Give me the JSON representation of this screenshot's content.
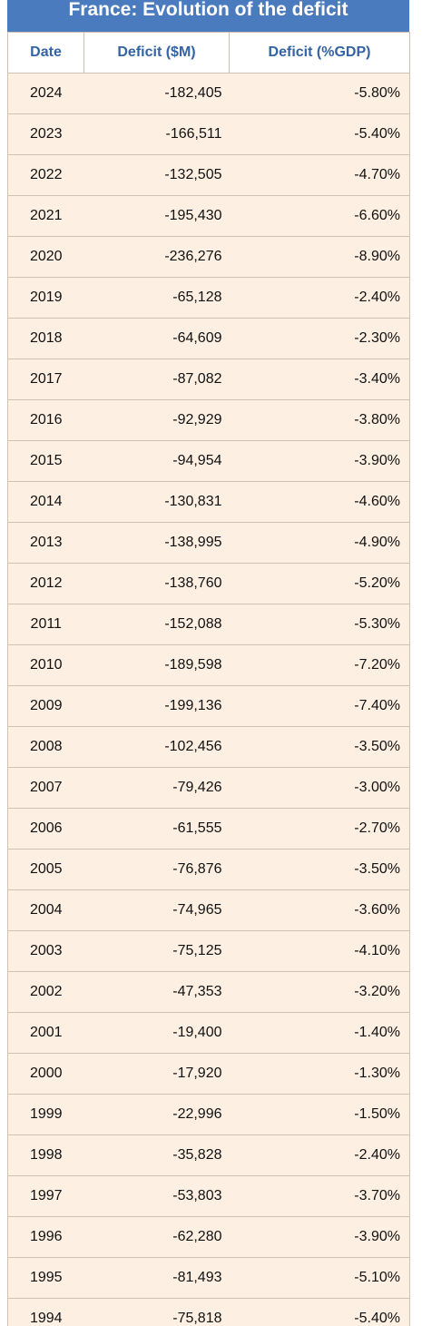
{
  "title": "France: Evolution of the deficit",
  "columns": [
    "Date",
    "Deficit ($M)",
    "Deficit (%GDP)"
  ],
  "rows": [
    {
      "date": "2024",
      "deficit_musd": "-182,405",
      "deficit_pct_gdp": "-5.80%"
    },
    {
      "date": "2023",
      "deficit_musd": "-166,511",
      "deficit_pct_gdp": "-5.40%"
    },
    {
      "date": "2022",
      "deficit_musd": "-132,505",
      "deficit_pct_gdp": "-4.70%"
    },
    {
      "date": "2021",
      "deficit_musd": "-195,430",
      "deficit_pct_gdp": "-6.60%"
    },
    {
      "date": "2020",
      "deficit_musd": "-236,276",
      "deficit_pct_gdp": "-8.90%"
    },
    {
      "date": "2019",
      "deficit_musd": "-65,128",
      "deficit_pct_gdp": "-2.40%"
    },
    {
      "date": "2018",
      "deficit_musd": "-64,609",
      "deficit_pct_gdp": "-2.30%"
    },
    {
      "date": "2017",
      "deficit_musd": "-87,082",
      "deficit_pct_gdp": "-3.40%"
    },
    {
      "date": "2016",
      "deficit_musd": "-92,929",
      "deficit_pct_gdp": "-3.80%"
    },
    {
      "date": "2015",
      "deficit_musd": "-94,954",
      "deficit_pct_gdp": "-3.90%"
    },
    {
      "date": "2014",
      "deficit_musd": "-130,831",
      "deficit_pct_gdp": "-4.60%"
    },
    {
      "date": "2013",
      "deficit_musd": "-138,995",
      "deficit_pct_gdp": "-4.90%"
    },
    {
      "date": "2012",
      "deficit_musd": "-138,760",
      "deficit_pct_gdp": "-5.20%"
    },
    {
      "date": "2011",
      "deficit_musd": "-152,088",
      "deficit_pct_gdp": "-5.30%"
    },
    {
      "date": "2010",
      "deficit_musd": "-189,598",
      "deficit_pct_gdp": "-7.20%"
    },
    {
      "date": "2009",
      "deficit_musd": "-199,136",
      "deficit_pct_gdp": "-7.40%"
    },
    {
      "date": "2008",
      "deficit_musd": "-102,456",
      "deficit_pct_gdp": "-3.50%"
    },
    {
      "date": "2007",
      "deficit_musd": "-79,426",
      "deficit_pct_gdp": "-3.00%"
    },
    {
      "date": "2006",
      "deficit_musd": "-61,555",
      "deficit_pct_gdp": "-2.70%"
    },
    {
      "date": "2005",
      "deficit_musd": "-76,876",
      "deficit_pct_gdp": "-3.50%"
    },
    {
      "date": "2004",
      "deficit_musd": "-74,965",
      "deficit_pct_gdp": "-3.60%"
    },
    {
      "date": "2003",
      "deficit_musd": "-75,125",
      "deficit_pct_gdp": "-4.10%"
    },
    {
      "date": "2002",
      "deficit_musd": "-47,353",
      "deficit_pct_gdp": "-3.20%"
    },
    {
      "date": "2001",
      "deficit_musd": "-19,400",
      "deficit_pct_gdp": "-1.40%"
    },
    {
      "date": "2000",
      "deficit_musd": "-17,920",
      "deficit_pct_gdp": "-1.30%"
    },
    {
      "date": "1999",
      "deficit_musd": "-22,996",
      "deficit_pct_gdp": "-1.50%"
    },
    {
      "date": "1998",
      "deficit_musd": "-35,828",
      "deficit_pct_gdp": "-2.40%"
    },
    {
      "date": "1997",
      "deficit_musd": "-53,803",
      "deficit_pct_gdp": "-3.70%"
    },
    {
      "date": "1996",
      "deficit_musd": "-62,280",
      "deficit_pct_gdp": "-3.90%"
    },
    {
      "date": "1995",
      "deficit_musd": "-81,493",
      "deficit_pct_gdp": "-5.10%"
    },
    {
      "date": "1994",
      "deficit_musd": "-75,818",
      "deficit_pct_gdp": "-5.40%"
    }
  ],
  "colors": {
    "title_bg": "#4b7bbf",
    "header_text": "#3463a3",
    "row_bg": "#fdf0e2",
    "border": "#cfc2b0"
  }
}
